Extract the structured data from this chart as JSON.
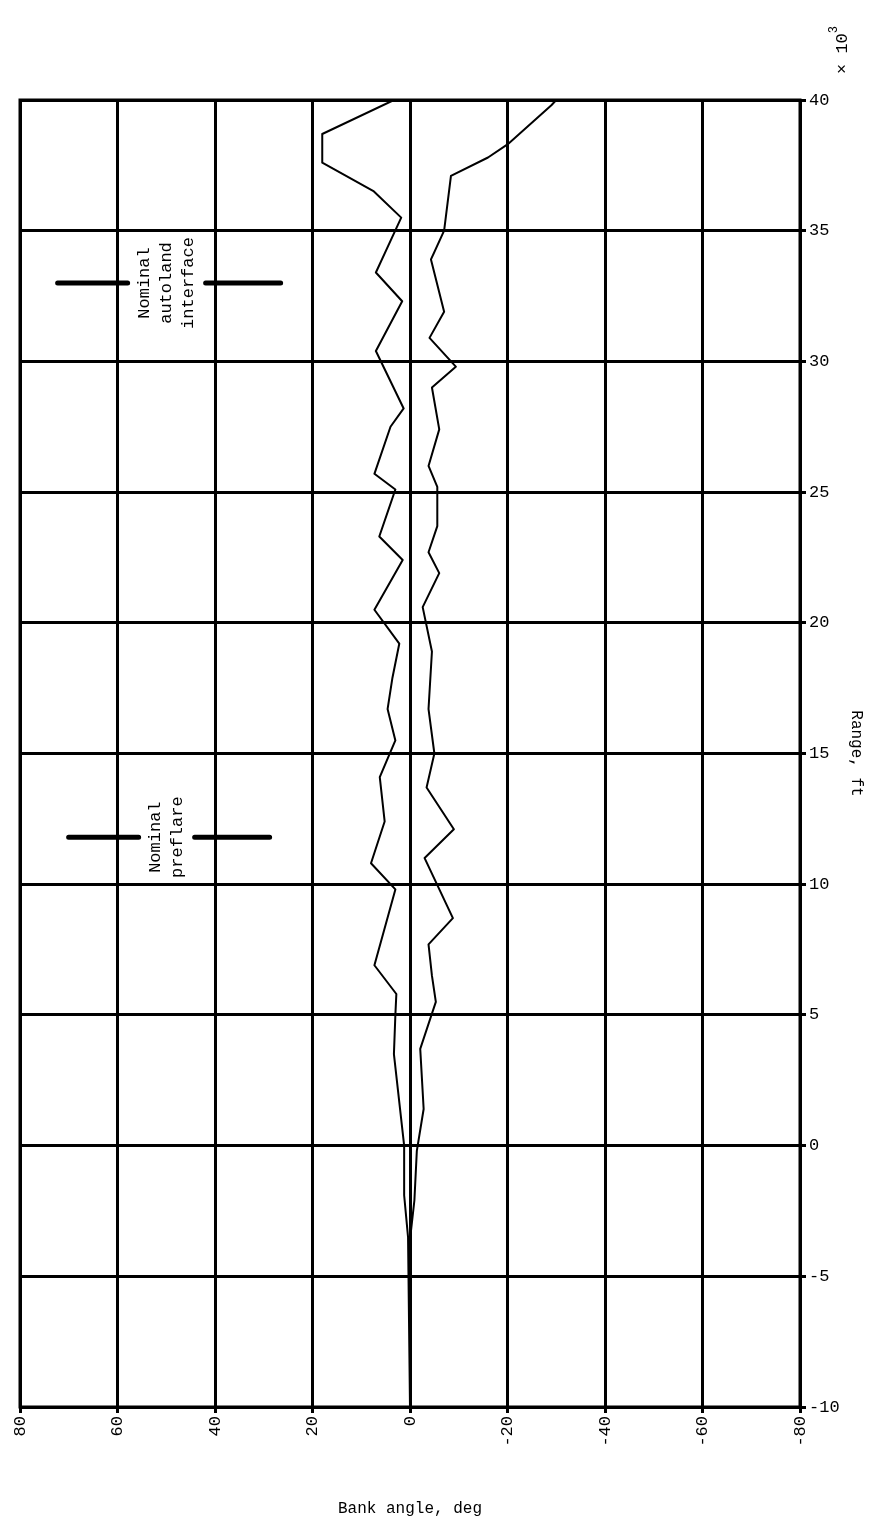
{
  "chart_data": {
    "type": "line",
    "xlabel": "Bank angle, deg",
    "ylabel": "Range, ft",
    "xlim": [
      80,
      -80
    ],
    "xticks": [
      80,
      60,
      40,
      20,
      0,
      -20,
      -40,
      -60,
      -80
    ],
    "ylim": [
      -10,
      40
    ],
    "yticks": [
      -10,
      -5,
      0,
      5,
      10,
      15,
      20,
      25,
      30,
      35,
      40
    ],
    "grid": true,
    "legend": false,
    "marker": "none",
    "line_style": "solid",
    "annotations": [
      "× 10$^{3}$"
    ],
    "ref_lines": [
      {
        "axis": "y",
        "value": 33,
        "label": "Nominal autoland interface"
      },
      {
        "axis": "y",
        "value": 11.8,
        "label": "Nominal preflare"
      }
    ],
    "series": [
      {
        "color": "#000000",
        "values": [
          -10,
          -3.5,
          -1.9,
          0,
          3.5,
          5,
          5.8,
          6.9,
          9.8,
          10.8,
          12.4,
          14.1,
          15.5,
          16.7,
          17.9,
          19.2,
          20.5,
          22.4,
          23.3,
          25.1,
          25.7,
          27.5,
          28.2,
          30.4,
          32.3,
          33.4,
          35.5,
          36.5,
          37.6,
          38.7,
          40
        ],
        "x": [
          0,
          0.4,
          1.2,
          1.2,
          3.3,
          3,
          2.8,
          7.3,
          3,
          8,
          5.2,
          6.2,
          3,
          4.6,
          3.6,
          2.2,
          7.3,
          1.5,
          6.3,
          3,
          7.3,
          4,
          1.3,
          7,
          1.6,
          7,
          1.8,
          7.4,
          18,
          18,
          3.3
        ]
      },
      {
        "color": "#000000",
        "values": [
          -10,
          -3.6,
          -2.1,
          -0.2,
          1.4,
          3.7,
          5.5,
          6.5,
          7.7,
          8.7,
          11,
          12.1,
          13.7,
          15,
          16.7,
          18.9,
          20.6,
          21.9,
          22.7,
          23.7,
          25.2,
          26,
          27.4,
          29,
          29.8,
          30.9,
          31.9,
          33.9,
          35,
          37.1,
          37.8,
          38.3,
          39.8,
          40
        ],
        "x": [
          0,
          0,
          -0.9,
          -1.4,
          -2.8,
          -2.1,
          -5.3,
          -4.5,
          -3.8,
          -8.8,
          -3,
          -9,
          -3.4,
          -5,
          -3.8,
          -4.5,
          -2.6,
          -6,
          -3.8,
          -5.6,
          -5.6,
          -3.8,
          -6,
          -4.5,
          -9.4,
          -4,
          -7,
          -4.3,
          -7,
          -8.4,
          -16,
          -20,
          -29,
          -30
        ]
      }
    ]
  }
}
